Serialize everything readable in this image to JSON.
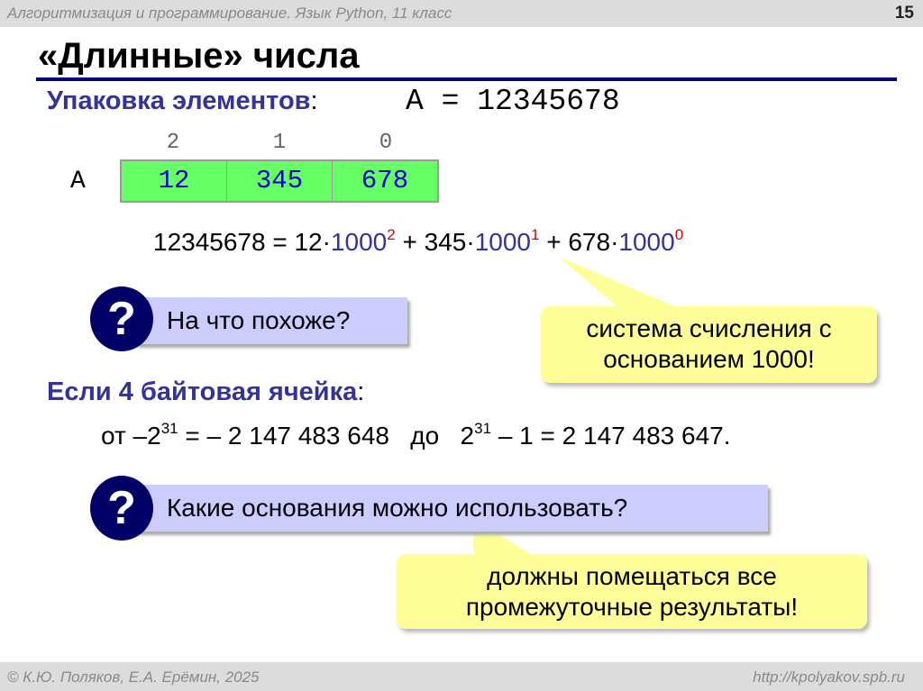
{
  "header": {
    "course": "Алгоритмизация и программирование. Язык Python, 11 класс",
    "page": "15"
  },
  "title": "«Длинные» числа",
  "packing": {
    "label": "Упаковка элементов",
    "colon": ":",
    "equation": "A = 12345678"
  },
  "array": {
    "name": "A",
    "indices": [
      "2",
      "1",
      "0"
    ],
    "cells": [
      "12",
      "345",
      "678"
    ],
    "fill": "#66ff66",
    "text_color": "#0000cc"
  },
  "formula": {
    "lhs": "12345678 = 12·",
    "t1": "1000",
    "e1": "2",
    "p2": " + 345·",
    "t2": "1000",
    "e2": "1",
    "p3": " + 678·",
    "t3": "1000",
    "e3": "0"
  },
  "q1": {
    "icon": "question-icon",
    "text": "На что похоже?"
  },
  "a1": {
    "line1": "система счисления с",
    "line2": "основанием 1000!"
  },
  "cell4": {
    "label": "Если 4 байтовая ячейка",
    "colon": ":"
  },
  "range": {
    "a": "от –2",
    "e1": "31",
    "b": " = – 2 147 483 648   до   2",
    "e2": "31",
    "c": " – 1 = 2 147 483 647."
  },
  "q2": {
    "icon": "question-icon",
    "text": "Какие основания можно использовать?"
  },
  "a2": {
    "line1": "должны помещаться все",
    "line2": "промежуточные результаты!"
  },
  "footer": {
    "authors": "© К.Ю. Поляков, Е.А. Ерёмин, 2025",
    "url": "http://kpolyakov.spb.ru"
  },
  "colors": {
    "accent": "#333399",
    "rule": "#00007a",
    "question_circle": "#000066",
    "question_box": "#ccccff",
    "callout": "#ffff99",
    "exponent": "#e00000"
  }
}
